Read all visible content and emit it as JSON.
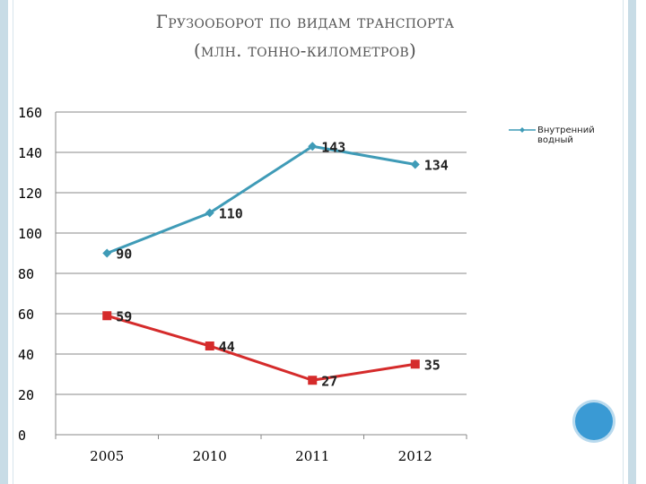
{
  "title": {
    "line1": "Грузооборот по видам транспорта",
    "line2": "(млн. тонно-километров)"
  },
  "colors": {
    "series1": "#3f9bb7",
    "series2": "#d52b2b",
    "grid": "#888888",
    "axis_text": "#000000",
    "accent_circle": "#3a9ad4"
  },
  "chart_data": {
    "type": "line",
    "categories": [
      "2005",
      "2010",
      "2011",
      "2012"
    ],
    "yticks": [
      "0",
      "20",
      "40",
      "60",
      "80",
      "100",
      "120",
      "140",
      "160"
    ],
    "ylim": [
      0,
      160
    ],
    "grid": true,
    "legend_position": "top-right",
    "series": [
      {
        "name": "Внутренний водный",
        "values": [
          90,
          110,
          143,
          134
        ],
        "marker": "diamond",
        "color": "#3f9bb7"
      },
      {
        "name": "",
        "values": [
          59,
          44,
          27,
          35
        ],
        "marker": "square",
        "color": "#d52b2b"
      }
    ],
    "data_labels": [
      [
        "90",
        "110",
        "143",
        "134"
      ],
      [
        "59",
        "44",
        "27",
        "35"
      ]
    ]
  }
}
